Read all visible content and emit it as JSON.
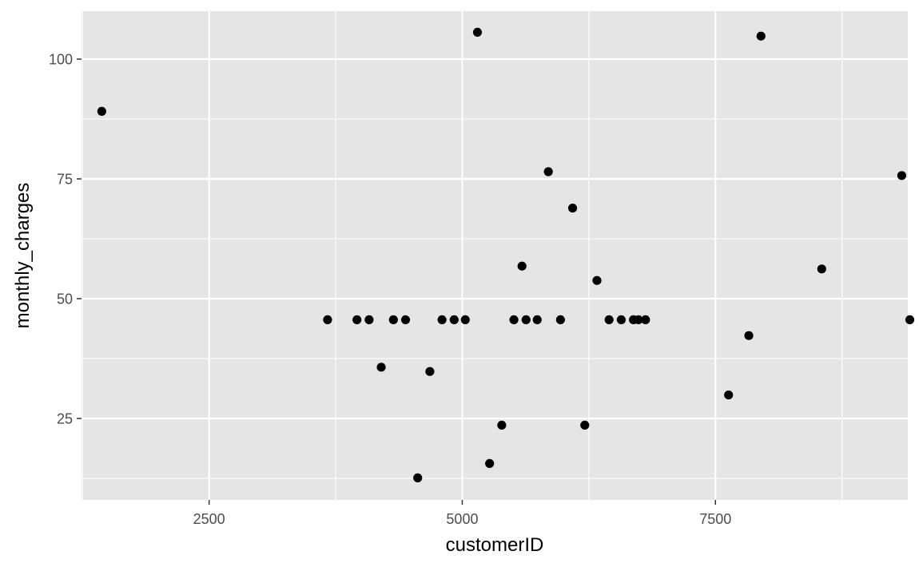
{
  "chart_data": {
    "type": "scatter",
    "title": "",
    "xlabel": "customerID",
    "ylabel": "monthly_charges",
    "xlim": [
      1240,
      9400
    ],
    "ylim": [
      8,
      110
    ],
    "x_ticks": [
      2500,
      5000,
      7500
    ],
    "y_ticks": [
      25,
      50,
      75,
      100
    ],
    "x_tick_labels": [
      "2500",
      "5000",
      "7500"
    ],
    "y_tick_labels": [
      "25",
      "50",
      "75",
      "100"
    ],
    "x_minor_ticks": [
      1250,
      3750,
      6250,
      8750
    ],
    "y_minor_ticks": [
      12.5,
      37.5,
      62.5,
      87.5
    ],
    "grid": true,
    "legend": "none",
    "colors": {
      "panel_background": "#e5e5e5",
      "grid_line": "#ffffff",
      "point": "#000000",
      "tick_mark": "#333333"
    },
    "points": [
      {
        "x": 1440,
        "y": 89.1
      },
      {
        "x": 3670,
        "y": 45.6
      },
      {
        "x": 3960,
        "y": 45.6
      },
      {
        "x": 4080,
        "y": 45.6
      },
      {
        "x": 4200,
        "y": 35.7
      },
      {
        "x": 4320,
        "y": 45.6
      },
      {
        "x": 4440,
        "y": 45.6
      },
      {
        "x": 4560,
        "y": 12.6
      },
      {
        "x": 4680,
        "y": 34.8
      },
      {
        "x": 4800,
        "y": 45.6
      },
      {
        "x": 4920,
        "y": 45.6
      },
      {
        "x": 5030,
        "y": 45.6
      },
      {
        "x": 5150,
        "y": 105.6
      },
      {
        "x": 5270,
        "y": 15.6
      },
      {
        "x": 5390,
        "y": 23.6
      },
      {
        "x": 5510,
        "y": 45.6
      },
      {
        "x": 5590,
        "y": 56.8
      },
      {
        "x": 5630,
        "y": 45.6
      },
      {
        "x": 5740,
        "y": 45.6
      },
      {
        "x": 5850,
        "y": 76.5
      },
      {
        "x": 5970,
        "y": 45.6
      },
      {
        "x": 6090,
        "y": 68.9
      },
      {
        "x": 6210,
        "y": 23.6
      },
      {
        "x": 6330,
        "y": 53.8
      },
      {
        "x": 6450,
        "y": 45.6
      },
      {
        "x": 6570,
        "y": 45.6
      },
      {
        "x": 6690,
        "y": 45.6
      },
      {
        "x": 6740,
        "y": 45.6
      },
      {
        "x": 6810,
        "y": 45.6
      },
      {
        "x": 7630,
        "y": 29.9
      },
      {
        "x": 7830,
        "y": 42.3
      },
      {
        "x": 7950,
        "y": 104.8
      },
      {
        "x": 8550,
        "y": 56.2
      },
      {
        "x": 9340,
        "y": 75.7
      },
      {
        "x": 9420,
        "y": 45.6
      }
    ]
  }
}
